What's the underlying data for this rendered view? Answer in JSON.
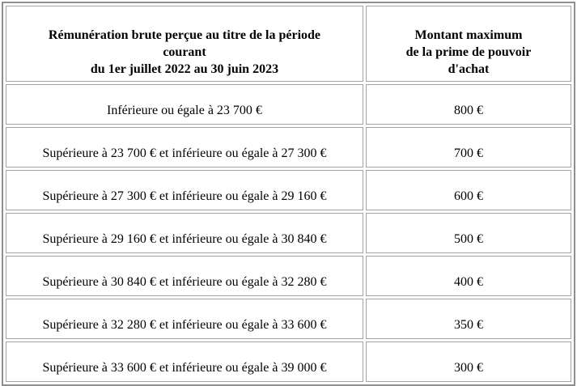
{
  "table": {
    "headers": {
      "remuneration": {
        "lines": [
          "Rémunération brute perçue au titre de la période",
          "courant",
          "du 1er juillet 2022 au 30 juin 2023"
        ]
      },
      "montant": {
        "lines": [
          "Montant maximum",
          "de la prime de pouvoir",
          "d'achat"
        ]
      }
    },
    "rows": [
      {
        "bracket": "Inférieure ou égale à 23 700 €",
        "amount": "800 €"
      },
      {
        "bracket": "Supérieure à 23 700 € et inférieure ou égale à 27 300 €",
        "amount": "700 €"
      },
      {
        "bracket": "Supérieure à 27 300 € et inférieure ou égale à 29 160 €",
        "amount": "600 €"
      },
      {
        "bracket": "Supérieure à 29 160 € et inférieure ou égale à 30 840 €",
        "amount": "500 €"
      },
      {
        "bracket": "Supérieure à 30 840 € et inférieure ou égale à 32 280 €",
        "amount": "400 €"
      },
      {
        "bracket": "Supérieure à 32 280 € et inférieure ou égale à 33 600 €",
        "amount": "350 €"
      },
      {
        "bracket": "Supérieure à 33 600 € et inférieure ou égale à 39 000 €",
        "amount": "300 €"
      }
    ],
    "border_colors": {
      "outer": "#8f8f8f",
      "cell": "#a3a3a3"
    },
    "text_color": "#000000",
    "background_color": "#ffffff"
  }
}
